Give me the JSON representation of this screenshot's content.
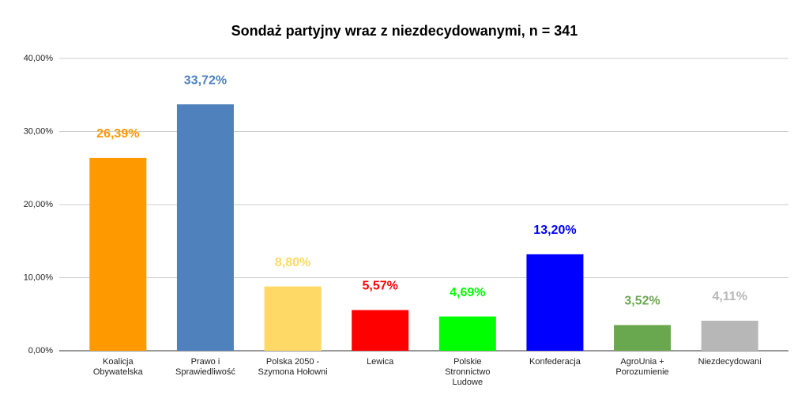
{
  "chart_data": {
    "type": "bar",
    "title": "Sondaż partyjny wraz z niezdecydowanymi, n = 341",
    "categories": [
      "Koalicja\nObywatelska",
      "Prawo i\nSprawiedliwość",
      "Polska 2050 -\nSzymona Hołowni",
      "Lewica",
      "Polskie\nStronnictwo\nLudowe",
      "Konfederacja",
      "AgroUnia +\nPorozumienie",
      "Niezdecydowani"
    ],
    "values": [
      26.39,
      33.72,
      8.8,
      5.57,
      4.69,
      13.2,
      3.52,
      4.11
    ],
    "value_labels": [
      "26,39%",
      "33,72%",
      "8,80%",
      "5,57%",
      "4,69%",
      "13,20%",
      "3,52%",
      "4,11%"
    ],
    "colors": [
      "#ff9900",
      "#4f81bd",
      "#ffd966",
      "#ff0000",
      "#00ff00",
      "#0000ff",
      "#6aa84f",
      "#b7b7b7"
    ],
    "ylim": [
      0,
      40
    ],
    "yticks": [
      {
        "value": 0,
        "label": "0,00%"
      },
      {
        "value": 10,
        "label": "10,00%"
      },
      {
        "value": 20,
        "label": "20,00%"
      },
      {
        "value": 30,
        "label": "30,00%"
      },
      {
        "value": 40,
        "label": "40,00%"
      }
    ],
    "grid": true
  }
}
